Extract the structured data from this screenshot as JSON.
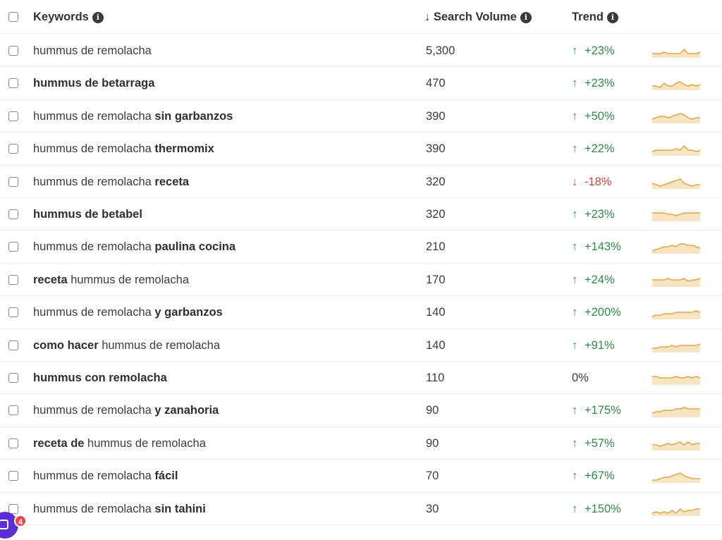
{
  "header": {
    "keywords_label": "Keywords",
    "volume_label": "Search Volume",
    "volume_sort_glyph": "↓",
    "trend_label": "Trend",
    "info_glyph": "i"
  },
  "trend_colors": {
    "up": "#2e8b4a",
    "down": "#d94040",
    "spark_line": "#e0a94a",
    "spark_fill": "#f7e4c2"
  },
  "rows": [
    {
      "parts": [
        {
          "t": "hummus de remolacha",
          "b": false
        }
      ],
      "volume": "5,300",
      "trend_dir": "up",
      "trend": "+23%",
      "spark": [
        3,
        3,
        3,
        4,
        3,
        3,
        3,
        3,
        6,
        3,
        3,
        3,
        4
      ]
    },
    {
      "parts": [
        {
          "t": "hummus de betarraga",
          "b": true
        }
      ],
      "volume": "470",
      "trend_dir": "up",
      "trend": "+23%",
      "spark": [
        3,
        3,
        2,
        5,
        3,
        3,
        5,
        6,
        4,
        3,
        4,
        3,
        4
      ]
    },
    {
      "parts": [
        {
          "t": "hummus de remolacha ",
          "b": false
        },
        {
          "t": "sin garbanzos",
          "b": true
        }
      ],
      "volume": "390",
      "trend_dir": "up",
      "trend": "+50%",
      "spark": [
        3,
        4,
        5,
        5,
        4,
        5,
        6,
        7,
        6,
        4,
        3,
        4,
        4
      ]
    },
    {
      "parts": [
        {
          "t": "hummus de remolacha ",
          "b": false
        },
        {
          "t": "thermomix",
          "b": true
        }
      ],
      "volume": "390",
      "trend_dir": "up",
      "trend": "+22%",
      "spark": [
        3,
        4,
        4,
        4,
        4,
        4,
        5,
        4,
        7,
        4,
        4,
        3,
        4
      ]
    },
    {
      "parts": [
        {
          "t": "hummus de remolacha ",
          "b": false
        },
        {
          "t": "receta",
          "b": true
        }
      ],
      "volume": "320",
      "trend_dir": "down",
      "trend": "-18%",
      "spark": [
        4,
        3,
        2,
        3,
        4,
        5,
        6,
        7,
        4,
        3,
        2,
        3,
        3
      ]
    },
    {
      "parts": [
        {
          "t": "hummus de betabel",
          "b": true
        }
      ],
      "volume": "320",
      "trend_dir": "up",
      "trend": "+23%",
      "spark": [
        6,
        6,
        6,
        6,
        5,
        5,
        4,
        5,
        6,
        6,
        6,
        6,
        6
      ]
    },
    {
      "parts": [
        {
          "t": "hummus de remolacha ",
          "b": false
        },
        {
          "t": "paulina cocina",
          "b": true
        }
      ],
      "volume": "210",
      "trend_dir": "up",
      "trend": "+143%",
      "spark": [
        2,
        3,
        4,
        5,
        5,
        6,
        5,
        7,
        7,
        6,
        6,
        5,
        4
      ]
    },
    {
      "parts": [
        {
          "t": "receta",
          "b": true
        },
        {
          "t": " hummus de remolacha",
          "b": false
        }
      ],
      "volume": "170",
      "trend_dir": "up",
      "trend": "+24%",
      "spark": [
        5,
        5,
        5,
        5,
        6,
        5,
        5,
        5,
        6,
        4,
        5,
        5,
        6
      ]
    },
    {
      "parts": [
        {
          "t": "hummus de remolacha ",
          "b": false
        },
        {
          "t": "y garbanzos",
          "b": true
        }
      ],
      "volume": "140",
      "trend_dir": "up",
      "trend": "+200%",
      "spark": [
        2,
        3,
        3,
        4,
        4,
        4,
        5,
        5,
        5,
        5,
        5,
        6,
        5
      ]
    },
    {
      "parts": [
        {
          "t": "como hacer",
          "b": true
        },
        {
          "t": " hummus de remolacha",
          "b": false
        }
      ],
      "volume": "140",
      "trend_dir": "up",
      "trend": "+91%",
      "spark": [
        3,
        3,
        4,
        4,
        4,
        5,
        4,
        5,
        5,
        5,
        5,
        5,
        6
      ]
    },
    {
      "parts": [
        {
          "t": "hummus con remolacha",
          "b": true
        }
      ],
      "volume": "110",
      "trend_dir": "flat",
      "trend": "0%",
      "spark": [
        6,
        6,
        5,
        5,
        5,
        5,
        6,
        5,
        5,
        6,
        5,
        6,
        5
      ]
    },
    {
      "parts": [
        {
          "t": "hummus de remolacha ",
          "b": false
        },
        {
          "t": "y zanahoria",
          "b": true
        }
      ],
      "volume": "90",
      "trend_dir": "up",
      "trend": "+175%",
      "spark": [
        3,
        4,
        4,
        5,
        5,
        5,
        6,
        6,
        7,
        6,
        6,
        6,
        6
      ]
    },
    {
      "parts": [
        {
          "t": "receta de",
          "b": true
        },
        {
          "t": " hummus de remolacha",
          "b": false
        }
      ],
      "volume": "90",
      "trend_dir": "up",
      "trend": "+57%",
      "spark": [
        4,
        4,
        3,
        4,
        5,
        4,
        5,
        6,
        4,
        6,
        4,
        5,
        5
      ]
    },
    {
      "parts": [
        {
          "t": "hummus de remolacha ",
          "b": false
        },
        {
          "t": "fácil",
          "b": true
        }
      ],
      "volume": "70",
      "trend_dir": "up",
      "trend": "+67%",
      "spark": [
        2,
        2,
        3,
        4,
        4,
        5,
        6,
        7,
        5,
        4,
        3,
        3,
        3
      ]
    },
    {
      "parts": [
        {
          "t": "hummus de remolacha ",
          "b": false
        },
        {
          "t": "sin tahini",
          "b": true
        }
      ],
      "volume": "30",
      "trend_dir": "up",
      "trend": "+150%",
      "spark": [
        2,
        3,
        2,
        3,
        2,
        4,
        2,
        5,
        3,
        4,
        4,
        5,
        5
      ]
    }
  ],
  "widget": {
    "badge_count": "4"
  }
}
